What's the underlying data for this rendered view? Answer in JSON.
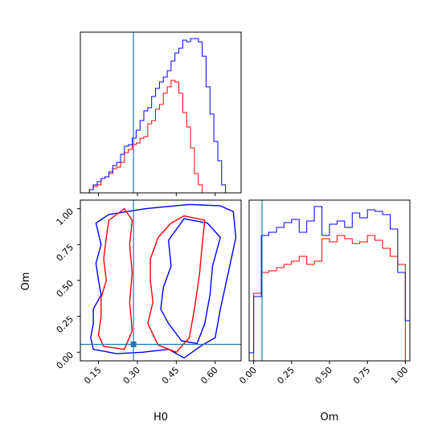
{
  "chart_data": {
    "type": "corner",
    "parameters": [
      "H0",
      "Om"
    ],
    "truths": {
      "H0": 0.285,
      "Om": 0.055
    },
    "colors": {
      "red": "#ff0000",
      "blue": "#0000ff",
      "truth": "#1f77b4"
    },
    "panels": [
      {
        "kind": "histogram",
        "parameter": "H0",
        "xlim": [
          0.08,
          0.7
        ],
        "x_ticks": [
          0.15,
          0.3,
          0.45,
          0.6
        ],
        "series": [
          {
            "color": "red",
            "step_edges": [
              0.1,
              0.115,
              0.13,
              0.145,
              0.16,
              0.175,
              0.19,
              0.205,
              0.22,
              0.235,
              0.25,
              0.265,
              0.28,
              0.295,
              0.31,
              0.325,
              0.34,
              0.355,
              0.37,
              0.385,
              0.4,
              0.415,
              0.43,
              0.445,
              0.46,
              0.475,
              0.49,
              0.505,
              0.52,
              0.535,
              0.55,
              0.565
            ],
            "values": [
              0.0,
              0.02,
              0.04,
              0.05,
              0.09,
              0.1,
              0.12,
              0.15,
              0.16,
              0.19,
              0.25,
              0.27,
              0.3,
              0.31,
              0.34,
              0.35,
              0.43,
              0.45,
              0.52,
              0.55,
              0.62,
              0.66,
              0.7,
              0.69,
              0.62,
              0.5,
              0.41,
              0.28,
              0.12,
              0.05,
              0.0
            ]
          },
          {
            "color": "blue",
            "step_edges": [
              0.1,
              0.115,
              0.13,
              0.145,
              0.16,
              0.175,
              0.19,
              0.205,
              0.22,
              0.235,
              0.25,
              0.265,
              0.28,
              0.295,
              0.31,
              0.325,
              0.34,
              0.355,
              0.37,
              0.385,
              0.4,
              0.415,
              0.43,
              0.445,
              0.46,
              0.475,
              0.49,
              0.505,
              0.52,
              0.535,
              0.55,
              0.565,
              0.58,
              0.595,
              0.61,
              0.625,
              0.64,
              0.655
            ],
            "values": [
              0.0,
              0.02,
              0.05,
              0.07,
              0.09,
              0.1,
              0.13,
              0.17,
              0.19,
              0.24,
              0.29,
              0.3,
              0.34,
              0.39,
              0.45,
              0.51,
              0.53,
              0.6,
              0.65,
              0.69,
              0.72,
              0.76,
              0.82,
              0.87,
              0.9,
              0.95,
              0.94,
              0.96,
              0.96,
              0.94,
              0.85,
              0.66,
              0.49,
              0.32,
              0.2,
              0.05,
              0.0
            ]
          }
        ]
      },
      {
        "kind": "histogram",
        "parameter": "Om",
        "xlim": [
          -0.03,
          1.03
        ],
        "x_ticks": [
          0.0,
          0.25,
          0.5,
          0.75,
          1.0
        ],
        "series": [
          {
            "color": "red",
            "step_edges": [
              0.0,
              0.05,
              0.1,
              0.15,
              0.2,
              0.25,
              0.3,
              0.35,
              0.4,
              0.45,
              0.5,
              0.55,
              0.6,
              0.65,
              0.7,
              0.75,
              0.8,
              0.85,
              0.9,
              0.95,
              1.0
            ],
            "values": [
              0.42,
              0.55,
              0.56,
              0.58,
              0.6,
              0.62,
              0.65,
              0.6,
              0.62,
              0.76,
              0.74,
              0.78,
              0.76,
              0.73,
              0.74,
              0.78,
              0.75,
              0.7,
              0.65,
              0.6
            ]
          },
          {
            "color": "blue",
            "step_edges": [
              -0.03,
              0.0,
              0.05,
              0.1,
              0.15,
              0.2,
              0.25,
              0.3,
              0.35,
              0.4,
              0.45,
              0.5,
              0.55,
              0.6,
              0.65,
              0.7,
              0.75,
              0.8,
              0.85,
              0.9,
              0.95,
              1.0,
              1.03
            ],
            "values": [
              0.05,
              0.4,
              0.78,
              0.8,
              0.83,
              0.86,
              0.88,
              0.8,
              0.87,
              0.96,
              0.78,
              0.85,
              0.87,
              0.83,
              0.92,
              0.89,
              0.94,
              0.93,
              0.91,
              0.82,
              0.55,
              0.25
            ]
          }
        ]
      },
      {
        "kind": "contour",
        "x_parameter": "H0",
        "y_parameter": "Om",
        "xlim": [
          0.08,
          0.7
        ],
        "ylim": [
          -0.06,
          1.06
        ],
        "x_ticks": [
          0.15,
          0.3,
          0.45,
          0.6
        ],
        "y_ticks": [
          0.0,
          0.25,
          0.5,
          0.75,
          1.0
        ],
        "contours": [
          {
            "color": "blue",
            "points": [
              [
                0.33,
                1.0
              ],
              [
                0.19,
                0.96
              ],
              [
                0.14,
                0.9
              ],
              [
                0.16,
                0.75
              ],
              [
                0.14,
                0.62
              ],
              [
                0.15,
                0.5
              ],
              [
                0.16,
                0.4
              ],
              [
                0.13,
                0.3
              ],
              [
                0.13,
                0.2
              ],
              [
                0.12,
                0.1
              ],
              [
                0.13,
                0.02
              ],
              [
                0.22,
                -0.01
              ],
              [
                0.32,
                0.0
              ],
              [
                0.42,
                0.02
              ],
              [
                0.48,
                -0.04
              ],
              [
                0.55,
                0.05
              ],
              [
                0.6,
                0.1
              ],
              [
                0.62,
                0.3
              ],
              [
                0.65,
                0.55
              ],
              [
                0.68,
                0.8
              ],
              [
                0.67,
                0.98
              ],
              [
                0.62,
                1.02
              ],
              [
                0.5,
                1.03
              ]
            ]
          },
          {
            "color": "blue",
            "points": [
              [
                0.57,
                0.9
              ],
              [
                0.48,
                0.93
              ],
              [
                0.42,
                0.78
              ],
              [
                0.43,
                0.6
              ],
              [
                0.4,
                0.45
              ],
              [
                0.39,
                0.3
              ],
              [
                0.42,
                0.2
              ],
              [
                0.47,
                0.08
              ],
              [
                0.53,
                0.06
              ],
              [
                0.56,
                0.2
              ],
              [
                0.58,
                0.4
              ],
              [
                0.59,
                0.6
              ],
              [
                0.62,
                0.8
              ]
            ]
          },
          {
            "color": "red",
            "points": [
              [
                0.25,
                1.0
              ],
              [
                0.19,
                0.92
              ],
              [
                0.18,
                0.8
              ],
              [
                0.17,
                0.65
              ],
              [
                0.18,
                0.5
              ],
              [
                0.16,
                0.38
              ],
              [
                0.16,
                0.25
              ],
              [
                0.15,
                0.12
              ],
              [
                0.17,
                0.04
              ],
              [
                0.25,
                0.02
              ],
              [
                0.28,
                0.15
              ],
              [
                0.27,
                0.35
              ],
              [
                0.28,
                0.55
              ],
              [
                0.27,
                0.75
              ],
              [
                0.28,
                0.92
              ]
            ]
          },
          {
            "color": "red",
            "points": [
              [
                0.48,
                0.95
              ],
              [
                0.43,
                0.9
              ],
              [
                0.38,
                0.8
              ],
              [
                0.35,
                0.65
              ],
              [
                0.35,
                0.5
              ],
              [
                0.36,
                0.35
              ],
              [
                0.34,
                0.2
              ],
              [
                0.38,
                0.05
              ],
              [
                0.45,
                0.0
              ],
              [
                0.5,
                0.1
              ],
              [
                0.52,
                0.3
              ],
              [
                0.54,
                0.55
              ],
              [
                0.55,
                0.75
              ],
              [
                0.56,
                0.92
              ]
            ]
          }
        ]
      }
    ]
  },
  "labels": {
    "x_h0": "H0",
    "x_om": "Om",
    "y_om": "Om"
  }
}
